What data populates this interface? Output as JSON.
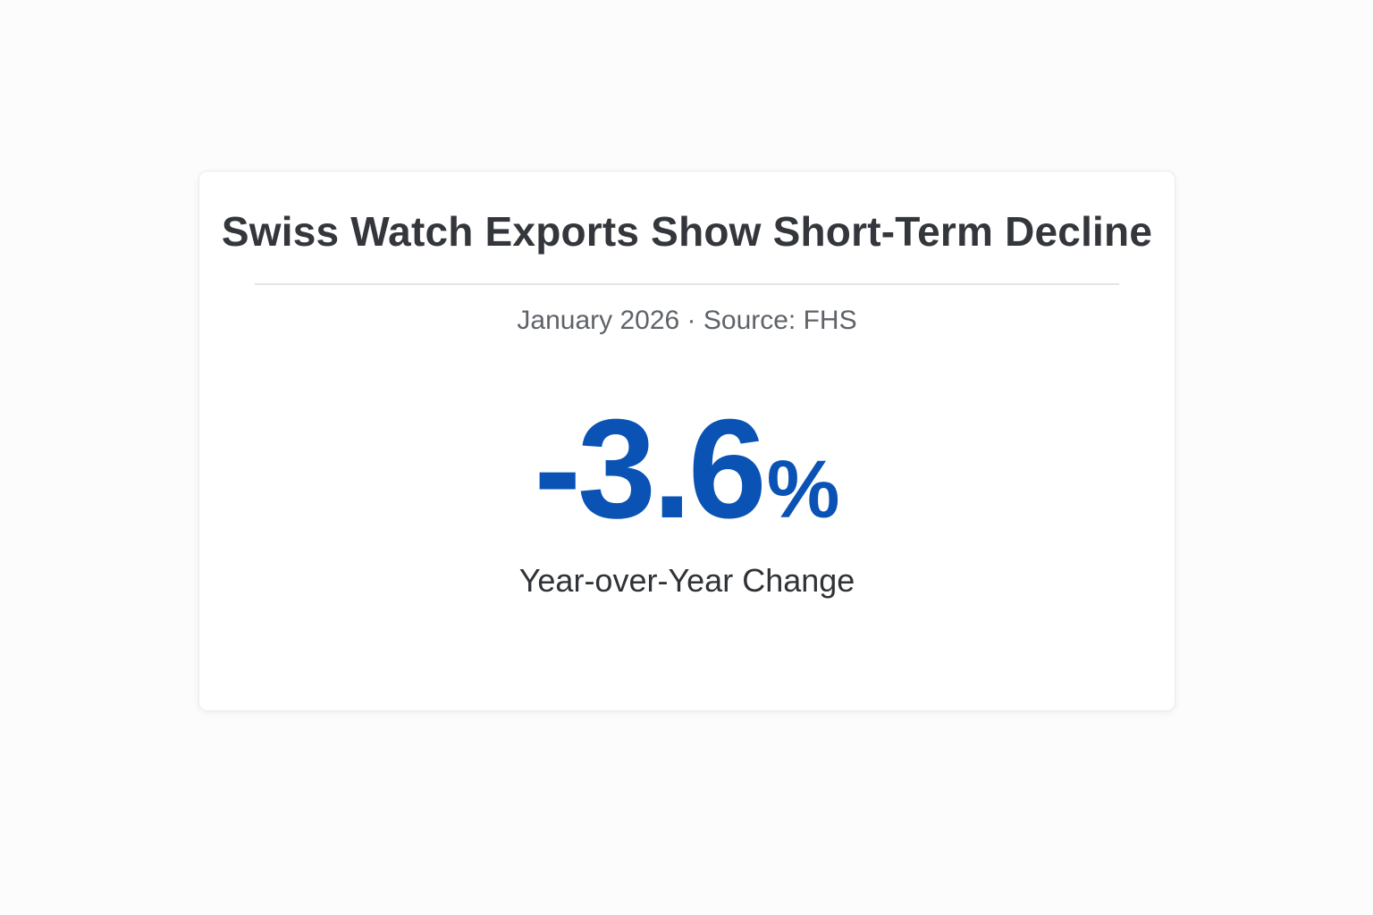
{
  "card": {
    "title": "Swiss Watch Exports Show Short-Term Decline",
    "meta": "January 2026 · Source: FHS",
    "metric": {
      "value": "-3.6",
      "unit": "%",
      "label": "Year-over-Year Change"
    }
  },
  "colors": {
    "accent": "#0a53b5",
    "title_text": "#33363b",
    "meta_text": "#5f6369",
    "background": "#fcfcfc",
    "card_background": "#ffffff"
  }
}
